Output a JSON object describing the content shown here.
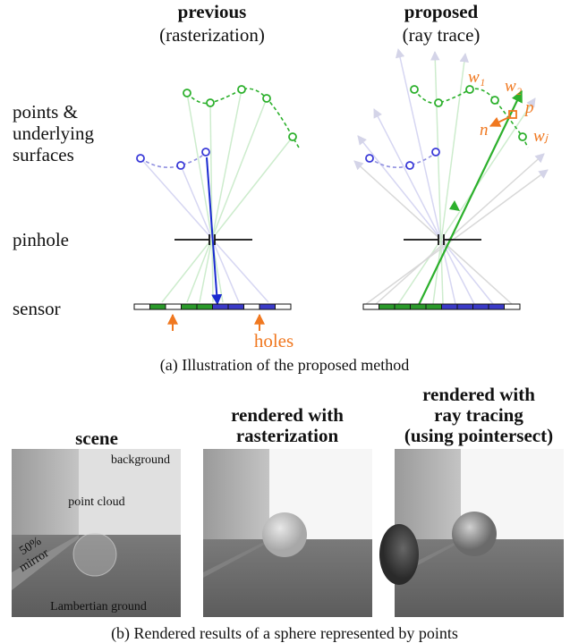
{
  "panel_a": {
    "previous": {
      "title": "previous",
      "subtitle": "(rasterization)"
    },
    "proposed": {
      "title": "proposed",
      "subtitle": "(ray trace)"
    },
    "row_labels": {
      "points": [
        "points &",
        "underlying",
        "surfaces"
      ],
      "pinhole": "pinhole",
      "sensor": "sensor"
    },
    "holes": "holes",
    "annotations": {
      "w1": "w₁",
      "w2": "w₂",
      "wj": "wⱼ",
      "p": "p",
      "n": "n"
    },
    "caption": "(a) Illustration of the proposed method"
  },
  "panel_b": {
    "columns": [
      {
        "title": [
          "scene"
        ]
      },
      {
        "title": [
          "rendered with",
          "rasterization"
        ]
      },
      {
        "title": [
          "rendered with",
          "ray tracing",
          "(using pointersect)"
        ]
      }
    ],
    "scene_labels": {
      "background": "background",
      "point_cloud": "point cloud",
      "mirror": [
        "50%",
        "mirror"
      ],
      "ground": "Lambertian ground"
    },
    "caption": "(b) Rendered results of a sphere represented by points"
  }
}
